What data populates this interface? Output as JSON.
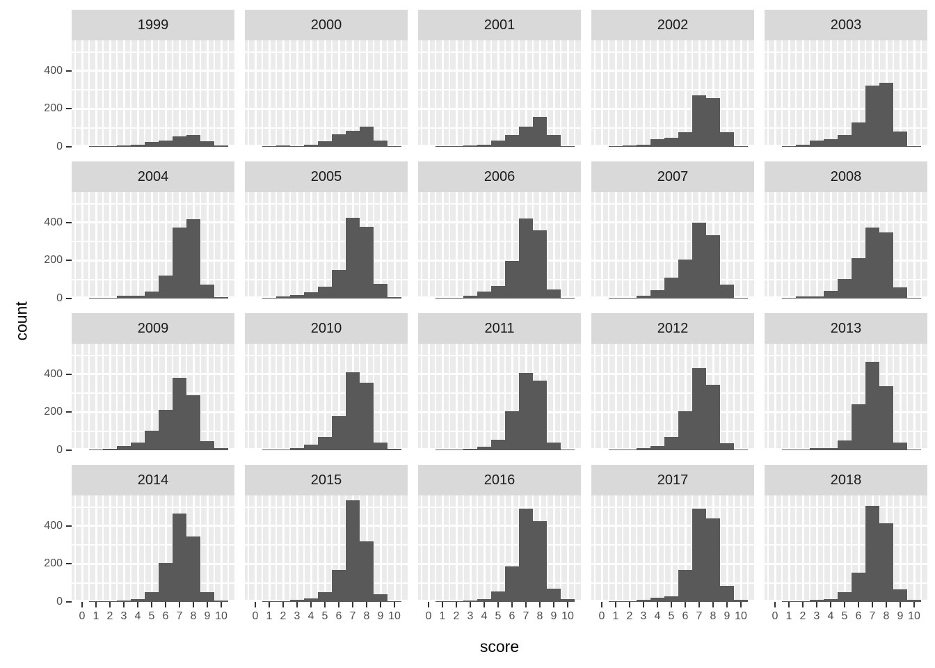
{
  "chart_data": {
    "type": "bar",
    "subtype": "faceted-histogram",
    "title": "",
    "xlabel": "score",
    "ylabel": "count",
    "facet_variable": "year",
    "x_ticks": [
      "0",
      "1",
      "2",
      "3",
      "4",
      "5",
      "6",
      "7",
      "8",
      "9",
      "10"
    ],
    "y_ticks": [
      "0",
      "200",
      "400"
    ],
    "xlim": [
      -0.75,
      10.95
    ],
    "ylim": [
      0,
      560
    ],
    "grid": "on",
    "legend": "none",
    "bin_width": 1,
    "scores": [
      1,
      2,
      3,
      4,
      5,
      6,
      7,
      8,
      9,
      10
    ],
    "facets": [
      {
        "year": "1999",
        "counts": [
          2,
          4,
          6,
          10,
          24,
          33,
          55,
          62,
          29,
          6
        ]
      },
      {
        "year": "2000",
        "counts": [
          2,
          7,
          5,
          11,
          28,
          65,
          84,
          106,
          33,
          4
        ]
      },
      {
        "year": "2001",
        "counts": [
          2,
          4,
          7,
          11,
          34,
          61,
          108,
          156,
          61,
          5
        ]
      },
      {
        "year": "2002",
        "counts": [
          2,
          6,
          12,
          39,
          49,
          76,
          273,
          256,
          76,
          5
        ]
      },
      {
        "year": "2003",
        "counts": [
          2,
          10,
          34,
          41,
          64,
          127,
          322,
          336,
          80,
          3
        ]
      },
      {
        "year": "2004",
        "counts": [
          2,
          4,
          16,
          16,
          37,
          120,
          372,
          417,
          74,
          9
        ]
      },
      {
        "year": "2005",
        "counts": [
          2,
          10,
          17,
          33,
          62,
          151,
          425,
          378,
          77,
          6
        ]
      },
      {
        "year": "2006",
        "counts": [
          2,
          4,
          14,
          36,
          65,
          198,
          420,
          358,
          47,
          4
        ]
      },
      {
        "year": "2007",
        "counts": [
          2,
          4,
          15,
          43,
          109,
          204,
          399,
          333,
          74,
          4
        ]
      },
      {
        "year": "2008",
        "counts": [
          2,
          10,
          10,
          41,
          102,
          211,
          372,
          348,
          60,
          4
        ]
      },
      {
        "year": "2009",
        "counts": [
          2,
          6,
          21,
          40,
          102,
          211,
          380,
          291,
          48,
          10
        ]
      },
      {
        "year": "2010",
        "counts": [
          2,
          3,
          12,
          31,
          68,
          178,
          411,
          356,
          40,
          6
        ]
      },
      {
        "year": "2011",
        "counts": [
          2,
          5,
          9,
          18,
          56,
          206,
          405,
          367,
          40,
          4
        ]
      },
      {
        "year": "2012",
        "counts": [
          2,
          5,
          12,
          21,
          70,
          207,
          431,
          346,
          37,
          4
        ]
      },
      {
        "year": "2013",
        "counts": [
          1,
          2,
          12,
          12,
          51,
          242,
          465,
          336,
          40,
          4
        ]
      },
      {
        "year": "2014",
        "counts": [
          2,
          4,
          7,
          15,
          53,
          206,
          467,
          343,
          52,
          6
        ]
      },
      {
        "year": "2015",
        "counts": [
          2,
          3,
          10,
          18,
          52,
          169,
          536,
          319,
          42,
          5
        ]
      },
      {
        "year": "2016",
        "counts": [
          2,
          3,
          7,
          15,
          56,
          188,
          491,
          426,
          70,
          15
        ]
      },
      {
        "year": "2017",
        "counts": [
          2,
          5,
          10,
          22,
          31,
          169,
          491,
          441,
          86,
          12
        ]
      },
      {
        "year": "2018",
        "counts": [
          1,
          4,
          10,
          15,
          53,
          153,
          507,
          414,
          67,
          10
        ]
      }
    ],
    "colors": {
      "bar_fill": "#595959",
      "panel_background": "#ebebeb",
      "grid_line": "#ffffff",
      "strip_background": "#d9d9d9",
      "strip_text": "#1a1a1a",
      "tick_label": "#4d4d4d",
      "tick_mark": "#333333",
      "axis_title": "#000000",
      "plot_background": "#ffffff"
    }
  }
}
